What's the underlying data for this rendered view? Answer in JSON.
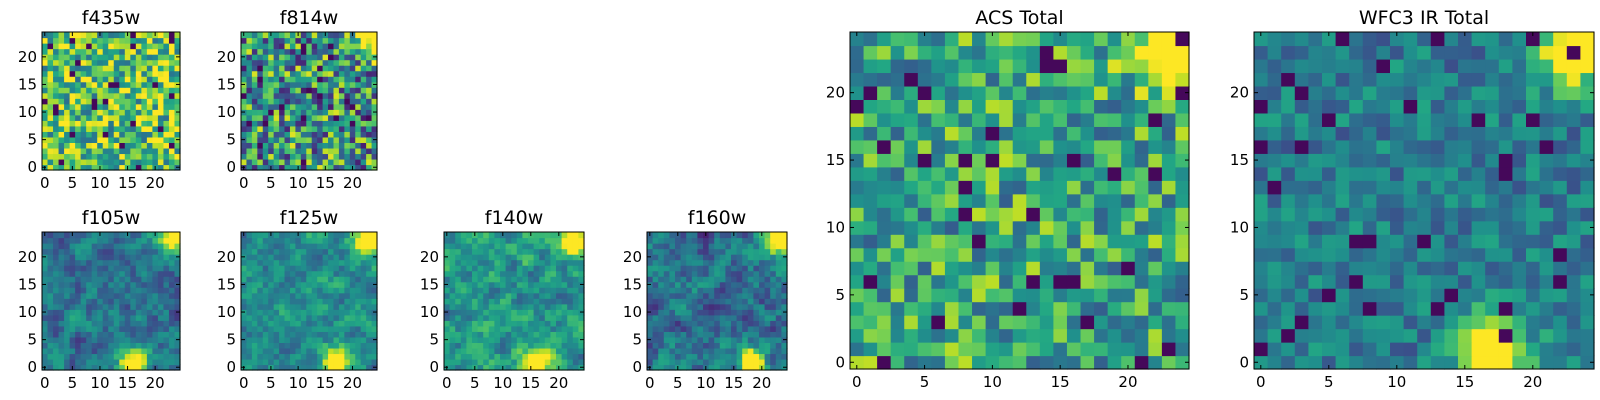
{
  "chart_data": [
    {
      "type": "heatmap",
      "title": "f435w",
      "colormap": "viridis",
      "grid_size": 25,
      "xlim": [
        0,
        24
      ],
      "ylim": [
        0,
        24
      ],
      "x_ticks": [
        0,
        5,
        10,
        15,
        20
      ],
      "y_ticks": [
        0,
        5,
        10,
        15,
        20
      ],
      "bright_regions": [],
      "grid": false
    },
    {
      "type": "heatmap",
      "title": "f814w",
      "colormap": "viridis",
      "grid_size": 25,
      "xlim": [
        0,
        24
      ],
      "ylim": [
        0,
        24
      ],
      "x_ticks": [
        0,
        5,
        10,
        15,
        20
      ],
      "y_ticks": [
        0,
        5,
        10,
        15,
        20
      ],
      "bright_regions": [
        [
          23,
          23
        ]
      ],
      "grid": false
    },
    {
      "type": "heatmap",
      "title": "ACS Total",
      "colormap": "viridis",
      "grid_size": 25,
      "xlim": [
        0,
        24
      ],
      "ylim": [
        0,
        24
      ],
      "x_ticks": [
        0,
        5,
        10,
        15,
        20
      ],
      "y_ticks": [
        0,
        5,
        10,
        15,
        20
      ],
      "bright_regions": [
        [
          23,
          23
        ]
      ],
      "grid": false
    },
    {
      "type": "heatmap",
      "title": "WFC3 IR Total",
      "colormap": "viridis",
      "grid_size": 25,
      "xlim": [
        0,
        24
      ],
      "ylim": [
        0,
        24
      ],
      "x_ticks": [
        0,
        5,
        10,
        15,
        20
      ],
      "y_ticks": [
        0,
        5,
        10,
        15,
        20
      ],
      "bright_regions": [
        [
          23,
          23
        ],
        [
          17,
          1
        ]
      ],
      "grid": false
    },
    {
      "type": "heatmap",
      "title": "f105w",
      "colormap": "viridis",
      "grid_size": 25,
      "xlim": [
        0,
        24
      ],
      "ylim": [
        0,
        24
      ],
      "x_ticks": [
        0,
        5,
        10,
        15,
        20
      ],
      "y_ticks": [
        0,
        5,
        10,
        15,
        20
      ],
      "bright_regions": [
        [
          23,
          23
        ],
        [
          16,
          1
        ]
      ],
      "grid": false
    },
    {
      "type": "heatmap",
      "title": "f125w",
      "colormap": "viridis",
      "grid_size": 25,
      "xlim": [
        0,
        24
      ],
      "ylim": [
        0,
        24
      ],
      "x_ticks": [
        0,
        5,
        10,
        15,
        20
      ],
      "y_ticks": [
        0,
        5,
        10,
        15,
        20
      ],
      "bright_regions": [
        [
          23,
          23
        ],
        [
          17,
          1
        ]
      ],
      "grid": false
    },
    {
      "type": "heatmap",
      "title": "f140w",
      "colormap": "viridis",
      "grid_size": 25,
      "xlim": [
        0,
        24
      ],
      "ylim": [
        0,
        24
      ],
      "x_ticks": [
        0,
        5,
        10,
        15,
        20
      ],
      "y_ticks": [
        0,
        5,
        10,
        15,
        20
      ],
      "bright_regions": [
        [
          23,
          23
        ],
        [
          16,
          1
        ]
      ],
      "grid": false
    },
    {
      "type": "heatmap",
      "title": "f160w",
      "colormap": "viridis",
      "grid_size": 25,
      "xlim": [
        0,
        24
      ],
      "ylim": [
        0,
        24
      ],
      "x_ticks": [
        0,
        5,
        10,
        15,
        20
      ],
      "y_ticks": [
        0,
        5,
        10,
        15,
        20
      ],
      "bright_regions": [
        [
          23,
          23
        ],
        [
          18,
          1
        ]
      ],
      "grid": false
    }
  ]
}
